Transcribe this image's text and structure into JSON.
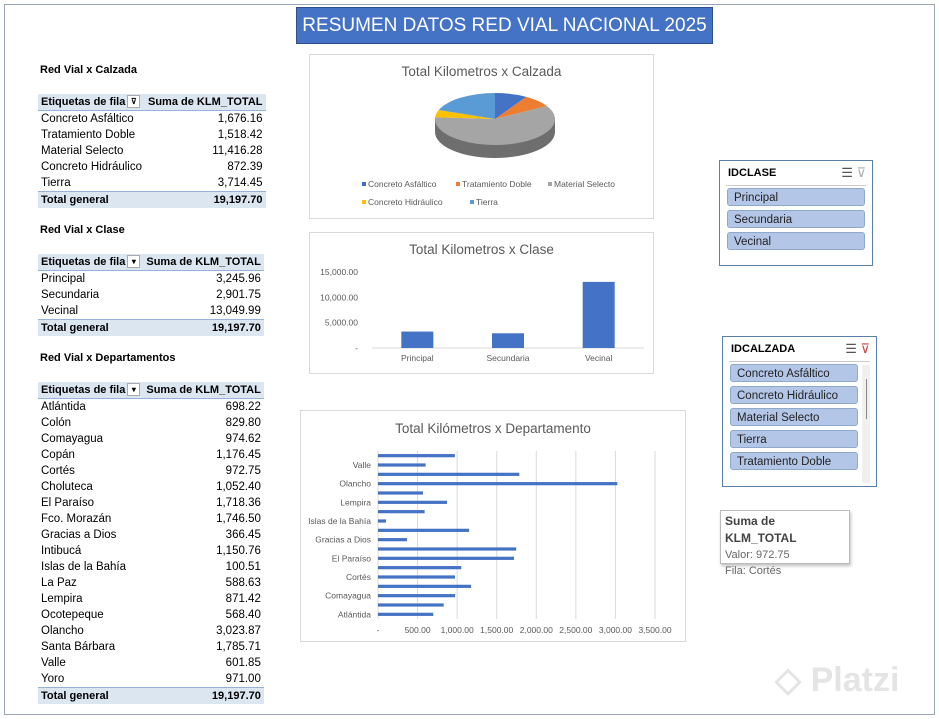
{
  "title": "RESUMEN DATOS RED VIAL NACIONAL 2025",
  "tables": [
    {
      "title": "Red Vial x Calzada",
      "col1": "Etiquetas de fila",
      "col2": "Suma de KLM_TOTAL",
      "rows": [
        [
          "Concreto Asfáltico",
          "1,676.16"
        ],
        [
          "Tratamiento Doble",
          "1,518.42"
        ],
        [
          "Material Selecto",
          "11,416.28"
        ],
        [
          "Concreto Hidráulico",
          "872.39"
        ],
        [
          "Tierra",
          "3,714.45"
        ]
      ],
      "total_label": "Total general",
      "total": "19,197.70",
      "filtered": true
    },
    {
      "title": "Red Vial x Clase",
      "col1": "Etiquetas de fila",
      "col2": "Suma de KLM_TOTAL",
      "rows": [
        [
          "Principal",
          "3,245.96"
        ],
        [
          "Secundaria",
          "2,901.75"
        ],
        [
          "Vecinal",
          "13,049.99"
        ]
      ],
      "total_label": "Total general",
      "total": "19,197.70"
    },
    {
      "title": "Red Vial x Departamentos",
      "col1": "Etiquetas de fila",
      "col2": "Suma de KLM_TOTAL",
      "rows": [
        [
          "Atlántida",
          "698.22"
        ],
        [
          "Colón",
          "829.80"
        ],
        [
          "Comayagua",
          "974.62"
        ],
        [
          "Copán",
          "1,176.45"
        ],
        [
          "Cortés",
          "972.75"
        ],
        [
          "Choluteca",
          "1,052.40"
        ],
        [
          "El Paraíso",
          "1,718.36"
        ],
        [
          "Fco. Morazán",
          "1,746.50"
        ],
        [
          "Gracias a Dios",
          "366.45"
        ],
        [
          "Intibucá",
          "1,150.76"
        ],
        [
          "Islas de la Bahía",
          "100.51"
        ],
        [
          "La Paz",
          "588.63"
        ],
        [
          "Lempira",
          "871.42"
        ],
        [
          "Ocotepeque",
          "568.40"
        ],
        [
          "Olancho",
          "3,023.87"
        ],
        [
          "Santa Bárbara",
          "1,785.71"
        ],
        [
          "Valle",
          "601.85"
        ],
        [
          "Yoro",
          "971.00"
        ]
      ],
      "total_label": "Total general",
      "total": "19,197.70"
    }
  ],
  "tooltip": {
    "title": "Suma de KLM_TOTAL",
    "value": "Valor:  972.75",
    "row": "Fila: Cortés"
  },
  "slicers": [
    {
      "title": "IDCLASE",
      "items": [
        "Principal",
        "Secundaria",
        "Vecinal"
      ]
    },
    {
      "title": "IDCALZADA",
      "items": [
        "Concreto Asfáltico",
        "Concreto Hidráulico",
        "Material Selecto",
        "Tierra",
        "Tratamiento Doble"
      ]
    }
  ],
  "watermark": "Platzi",
  "chart_data": [
    {
      "type": "pie",
      "title": "Total Kilometros x Calzada",
      "categories": [
        "Concreto Asfáltico",
        "Tratamiento Doble",
        "Material Selecto",
        "Concreto Hidráulico",
        "Tierra"
      ],
      "values": [
        1676.16,
        1518.42,
        11416.28,
        872.39,
        3714.45
      ],
      "colors": [
        "#4472c4",
        "#ed7d31",
        "#a5a5a5",
        "#ffc000",
        "#5b9bd5"
      ],
      "legend": "bottom"
    },
    {
      "type": "bar",
      "title": "Total Kilometros x Clase",
      "categories": [
        "Principal",
        "Secundaria",
        "Vecinal"
      ],
      "values": [
        3245.96,
        2901.75,
        13049.99
      ],
      "yticks": [
        "-",
        "5,000.00",
        "10,000.00",
        "15,000.00"
      ],
      "ylim": [
        0,
        15000
      ],
      "color": "#4472c4"
    },
    {
      "type": "bar",
      "orientation": "horizontal",
      "title": "Total Kilómetros x Departamento",
      "categories": [
        "Atlántida",
        "Colón",
        "Comayagua",
        "Copán",
        "Cortés",
        "Choluteca",
        "El Paraíso",
        "Fco. Morazán",
        "Gracias a Dios",
        "Intibucá",
        "Islas de la Bahía",
        "La Paz",
        "Lempira",
        "Ocotepeque",
        "Olancho",
        "Santa Bárbara",
        "Valle",
        "Yoro"
      ],
      "values": [
        698.22,
        829.8,
        974.62,
        1176.45,
        972.75,
        1052.4,
        1718.36,
        1746.5,
        366.45,
        1150.76,
        100.51,
        588.63,
        871.42,
        568.4,
        3023.87,
        1785.71,
        601.85,
        971.0
      ],
      "xticks": [
        "-",
        "500.00",
        "1,000.00",
        "1,500.00",
        "2,000.00",
        "2,500.00",
        "3,000.00",
        "3,500.00"
      ],
      "xlim": [
        0,
        3500
      ],
      "color": "#4472c4",
      "grid": true
    }
  ]
}
